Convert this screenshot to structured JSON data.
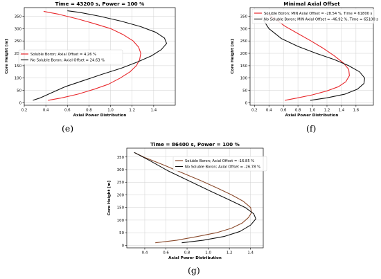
{
  "chart_data": [
    {
      "type": "line",
      "caption": "(e)",
      "title": "Time = 43200 s, Power = 100 %",
      "xlabel": "Axial Power Distribution",
      "ylabel": "Core Height [m]",
      "xlim": [
        0.2,
        1.6
      ],
      "ylim": [
        -10,
        385
      ],
      "xticks": [
        0.2,
        0.4,
        0.6,
        0.8,
        1.0,
        1.2,
        1.4
      ],
      "yticks": [
        0,
        50,
        100,
        150,
        200,
        250,
        300,
        350
      ],
      "grid": true,
      "legend_position": "center-left",
      "series": [
        {
          "name": "Soluble Boron; Axial Offset = 4.26 %",
          "color": "#e8262a",
          "x": [
            0.42,
            0.55,
            0.7,
            0.85,
            0.98,
            1.09,
            1.18,
            1.24,
            1.27,
            1.28,
            1.26,
            1.21,
            1.12,
            1.0,
            0.85,
            0.69,
            0.52,
            0.38
          ],
          "y": [
            10,
            20,
            35,
            55,
            75,
            100,
            125,
            150,
            175,
            200,
            225,
            250,
            275,
            300,
            320,
            340,
            358,
            370
          ]
        },
        {
          "name": "No Soluble Boron; Axial Offset = 24.63 %",
          "color": "#111111",
          "x": [
            0.28,
            0.35,
            0.45,
            0.58,
            0.75,
            0.92,
            1.1,
            1.25,
            1.38,
            1.47,
            1.52,
            1.5,
            1.42,
            1.28,
            1.1,
            0.9,
            0.72,
            0.6
          ],
          "y": [
            10,
            20,
            40,
            65,
            90,
            115,
            140,
            165,
            190,
            215,
            240,
            262,
            285,
            308,
            330,
            350,
            365,
            372
          ]
        }
      ]
    },
    {
      "type": "line",
      "caption": "(f)",
      "title": "Minimal Axial Offset",
      "xlabel": "Axial Power Distribution",
      "ylabel": "Core Height [m]",
      "xlim": [
        0.14,
        1.84
      ],
      "ylim": [
        -10,
        385
      ],
      "xticks": [
        0.2,
        0.4,
        0.6,
        0.8,
        1.0,
        1.2,
        1.4,
        1.6
      ],
      "yticks": [
        0,
        50,
        100,
        150,
        200,
        250,
        300,
        350
      ],
      "grid": true,
      "legend_position": "top-right",
      "series": [
        {
          "name": "Soluble Boron; MIN Axial Offset = -28.54 %, Time = 61800 s",
          "color": "#e8262a",
          "x": [
            0.62,
            0.8,
            1.0,
            1.2,
            1.36,
            1.46,
            1.51,
            1.5,
            1.43,
            1.3,
            1.15,
            0.98,
            0.8,
            0.62,
            0.48,
            0.38
          ],
          "y": [
            10,
            20,
            32,
            48,
            65,
            85,
            110,
            135,
            160,
            190,
            220,
            250,
            280,
            310,
            340,
            360
          ]
        },
        {
          "name": "No Soluble Boron; MIN Axial Offset = -46.92 %, Time = 65100 s",
          "color": "#111111",
          "x": [
            0.97,
            1.2,
            1.45,
            1.62,
            1.71,
            1.72,
            1.65,
            1.5,
            1.3,
            1.05,
            0.8,
            0.57,
            0.4,
            0.3
          ],
          "y": [
            10,
            20,
            35,
            55,
            78,
            100,
            125,
            150,
            175,
            200,
            228,
            260,
            300,
            345
          ]
        }
      ]
    },
    {
      "type": "line",
      "caption": "(g)",
      "title": "Time = 86400 s, Power = 100 %",
      "xlabel": "Axial Power Distribution",
      "ylabel": "Core Height [m]",
      "xlim": [
        0.23,
        1.52
      ],
      "ylim": [
        -10,
        385
      ],
      "xticks": [
        0.4,
        0.6,
        0.8,
        1.0,
        1.2,
        1.4
      ],
      "yticks": [
        0,
        50,
        100,
        150,
        200,
        250,
        300,
        350
      ],
      "grid": true,
      "legend_position": "top-right",
      "series": [
        {
          "name": "Soluble Boron; Axial Offset = -16.85 %",
          "color": "#8a4a2c",
          "x": [
            0.5,
            0.7,
            0.9,
            1.08,
            1.22,
            1.32,
            1.38,
            1.41,
            1.4,
            1.33,
            1.22,
            1.08,
            0.92,
            0.75,
            0.58,
            0.4,
            0.3
          ],
          "y": [
            10,
            20,
            35,
            50,
            68,
            88,
            110,
            130,
            150,
            175,
            200,
            228,
            258,
            288,
            318,
            348,
            368
          ]
        },
        {
          "name": "No Soluble Boron; Axial Offset = -26.78 %",
          "color": "#111111",
          "x": [
            0.75,
            0.95,
            1.15,
            1.3,
            1.4,
            1.45,
            1.43,
            1.35,
            1.2,
            1.02,
            0.82,
            0.62,
            0.45,
            0.3
          ],
          "y": [
            10,
            20,
            35,
            55,
            80,
            105,
            125,
            150,
            180,
            215,
            255,
            295,
            335,
            368
          ]
        }
      ]
    }
  ]
}
